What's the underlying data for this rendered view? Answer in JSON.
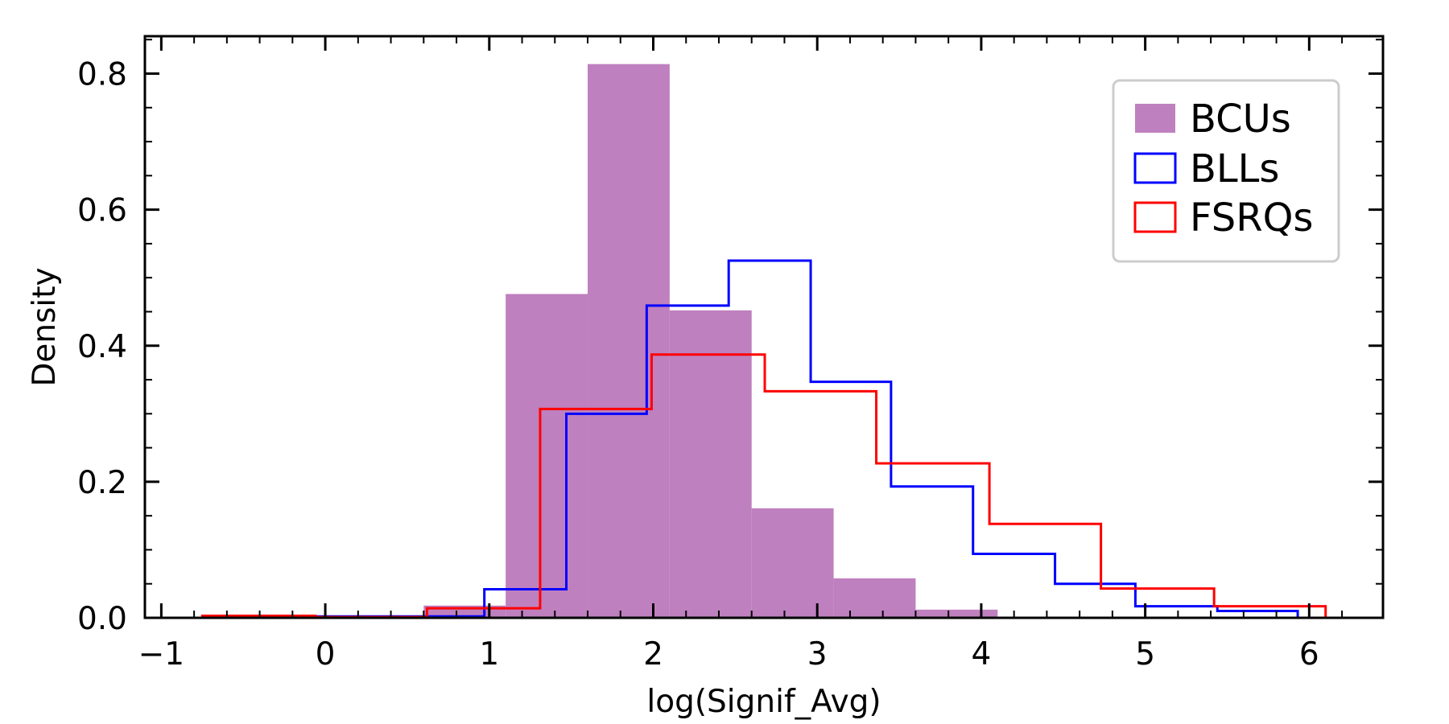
{
  "chart_data": {
    "type": "histogram",
    "xlabel": "log(Signif_Avg)",
    "ylabel": "Density",
    "xlim": [
      -1.1,
      6.45
    ],
    "ylim": [
      0,
      0.855
    ],
    "xticks": [
      -1,
      0,
      1,
      2,
      3,
      4,
      5,
      6
    ],
    "xtick_labels": [
      "−1",
      "0",
      "1",
      "2",
      "3",
      "4",
      "5",
      "6"
    ],
    "yticks": [
      0.0,
      0.2,
      0.4,
      0.6,
      0.8
    ],
    "ytick_labels": [
      "0.0",
      "0.2",
      "0.4",
      "0.6",
      "0.8"
    ],
    "grid": false,
    "legend_position": "top-right",
    "series": [
      {
        "name": "BCUs",
        "style": "filled",
        "color": "#bf80bf",
        "bin_edges": [
          0.1,
          0.6,
          1.1,
          1.6,
          2.1,
          2.6,
          3.1,
          3.6,
          4.1
        ],
        "values": [
          0.002,
          0.018,
          0.476,
          0.814,
          0.452,
          0.161,
          0.058,
          0.012
        ]
      },
      {
        "name": "BLLs",
        "style": "step",
        "color": "#0000ff",
        "bin_edges": [
          -0.15,
          0.97,
          1.47,
          1.96,
          2.46,
          2.96,
          3.45,
          3.95,
          4.45,
          4.94,
          5.44,
          5.93
        ],
        "values": [
          0.002,
          0.042,
          0.3,
          0.459,
          0.525,
          0.347,
          0.193,
          0.094,
          0.05,
          0.017,
          0.01
        ]
      },
      {
        "name": "FSRQs",
        "style": "step",
        "color": "#ff0000",
        "bin_edges": [
          -0.75,
          -0.06,
          0.62,
          1.31,
          1.99,
          2.68,
          3.36,
          4.05,
          4.73,
          5.42,
          6.1
        ],
        "values": [
          0.003,
          0.001,
          0.014,
          0.307,
          0.387,
          0.333,
          0.227,
          0.138,
          0.043,
          0.017
        ]
      }
    ]
  }
}
